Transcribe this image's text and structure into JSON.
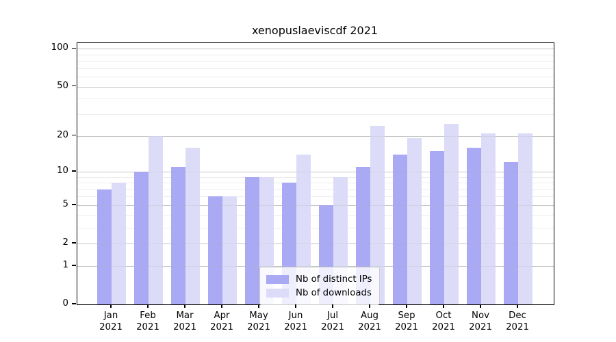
{
  "title": "xenopuslaeviscdf 2021",
  "legend": {
    "entries": [
      {
        "label": "Nb of distinct IPs",
        "color": "#a9a9f4"
      },
      {
        "label": "Nb of downloads",
        "color": "#dcdcf8"
      }
    ]
  },
  "colors": {
    "bar_distinct_ips": "#a9a9f4",
    "bar_downloads": "#dcdcf8",
    "grid_major": "#cccccc",
    "grid_minor": "#ededed",
    "axis": "#000000"
  },
  "chart_data": {
    "type": "bar",
    "title": "xenopuslaeviscdf 2021",
    "categories": [
      {
        "month": "Jan",
        "year": "2021"
      },
      {
        "month": "Feb",
        "year": "2021"
      },
      {
        "month": "Mar",
        "year": "2021"
      },
      {
        "month": "Apr",
        "year": "2021"
      },
      {
        "month": "May",
        "year": "2021"
      },
      {
        "month": "Jun",
        "year": "2021"
      },
      {
        "month": "Jul",
        "year": "2021"
      },
      {
        "month": "Aug",
        "year": "2021"
      },
      {
        "month": "Sep",
        "year": "2021"
      },
      {
        "month": "Oct",
        "year": "2021"
      },
      {
        "month": "Nov",
        "year": "2021"
      },
      {
        "month": "Dec",
        "year": "2021"
      }
    ],
    "series": [
      {
        "name": "Nb of distinct IPs",
        "color": "#a9a9f4",
        "values": [
          7,
          10,
          11,
          6,
          9,
          8,
          5,
          11,
          14,
          15,
          16,
          12
        ]
      },
      {
        "name": "Nb of downloads",
        "color": "#dcdcf8",
        "values": [
          8,
          20,
          16,
          6,
          9,
          14,
          9,
          24,
          19,
          25,
          21,
          21
        ]
      }
    ],
    "xlabel": "",
    "ylabel": "",
    "yscale": "log1p",
    "yticks": [
      0,
      1,
      2,
      5,
      10,
      20,
      50,
      100
    ],
    "minor_yticks": [
      3,
      4,
      6,
      7,
      8,
      9,
      30,
      40,
      60,
      70,
      80,
      90
    ],
    "ylim": [
      0,
      111
    ],
    "grid": true,
    "legend_position": "lower center"
  }
}
